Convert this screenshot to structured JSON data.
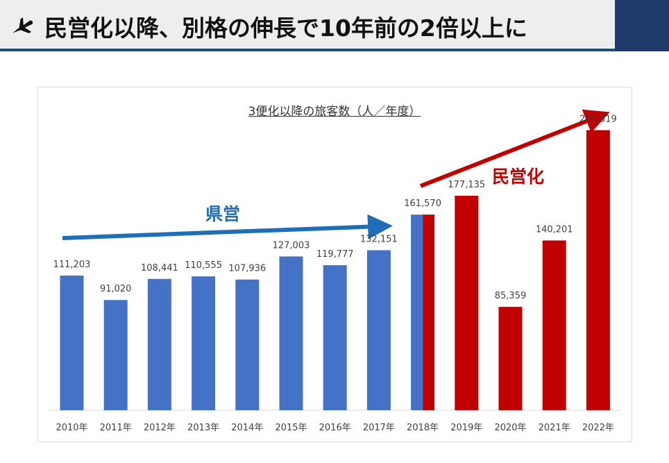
{
  "header": {
    "title": "民営化以降、別格の伸長で10年前の2倍以上に",
    "icon": "airplane-icon"
  },
  "annotations": {
    "prefectural": "県営",
    "privatized": "民営化"
  },
  "colors": {
    "prefectural": "#4472c4",
    "privatized": "#c00000",
    "prefectural_arrow": "#1f6fb8",
    "privatized_arrow": "#c00000"
  },
  "chart_data": {
    "type": "bar",
    "title": "3便化以降の旅客数（人／年度）",
    "categories": [
      "2010年",
      "2011年",
      "2012年",
      "2013年",
      "2014年",
      "2015年",
      "2016年",
      "2017年",
      "2018年",
      "2019年",
      "2020年",
      "2021年",
      "2022年"
    ],
    "values": [
      111203,
      91020,
      108441,
      110555,
      107936,
      127003,
      119777,
      132151,
      161570,
      177135,
      85359,
      140201,
      231319
    ],
    "value_labels": [
      "111,203",
      "91,020",
      "108,441",
      "110,555",
      "107,936",
      "127,003",
      "119,777",
      "132,151",
      "161,570",
      "177,135",
      "85,359",
      "140,201",
      "231,319"
    ],
    "period": [
      "prefectural",
      "prefectural",
      "prefectural",
      "prefectural",
      "prefectural",
      "prefectural",
      "prefectural",
      "prefectural",
      "transition",
      "privatized",
      "privatized",
      "privatized",
      "privatized"
    ],
    "ylim": [
      0,
      270000
    ],
    "grid": false,
    "legend": "none"
  }
}
